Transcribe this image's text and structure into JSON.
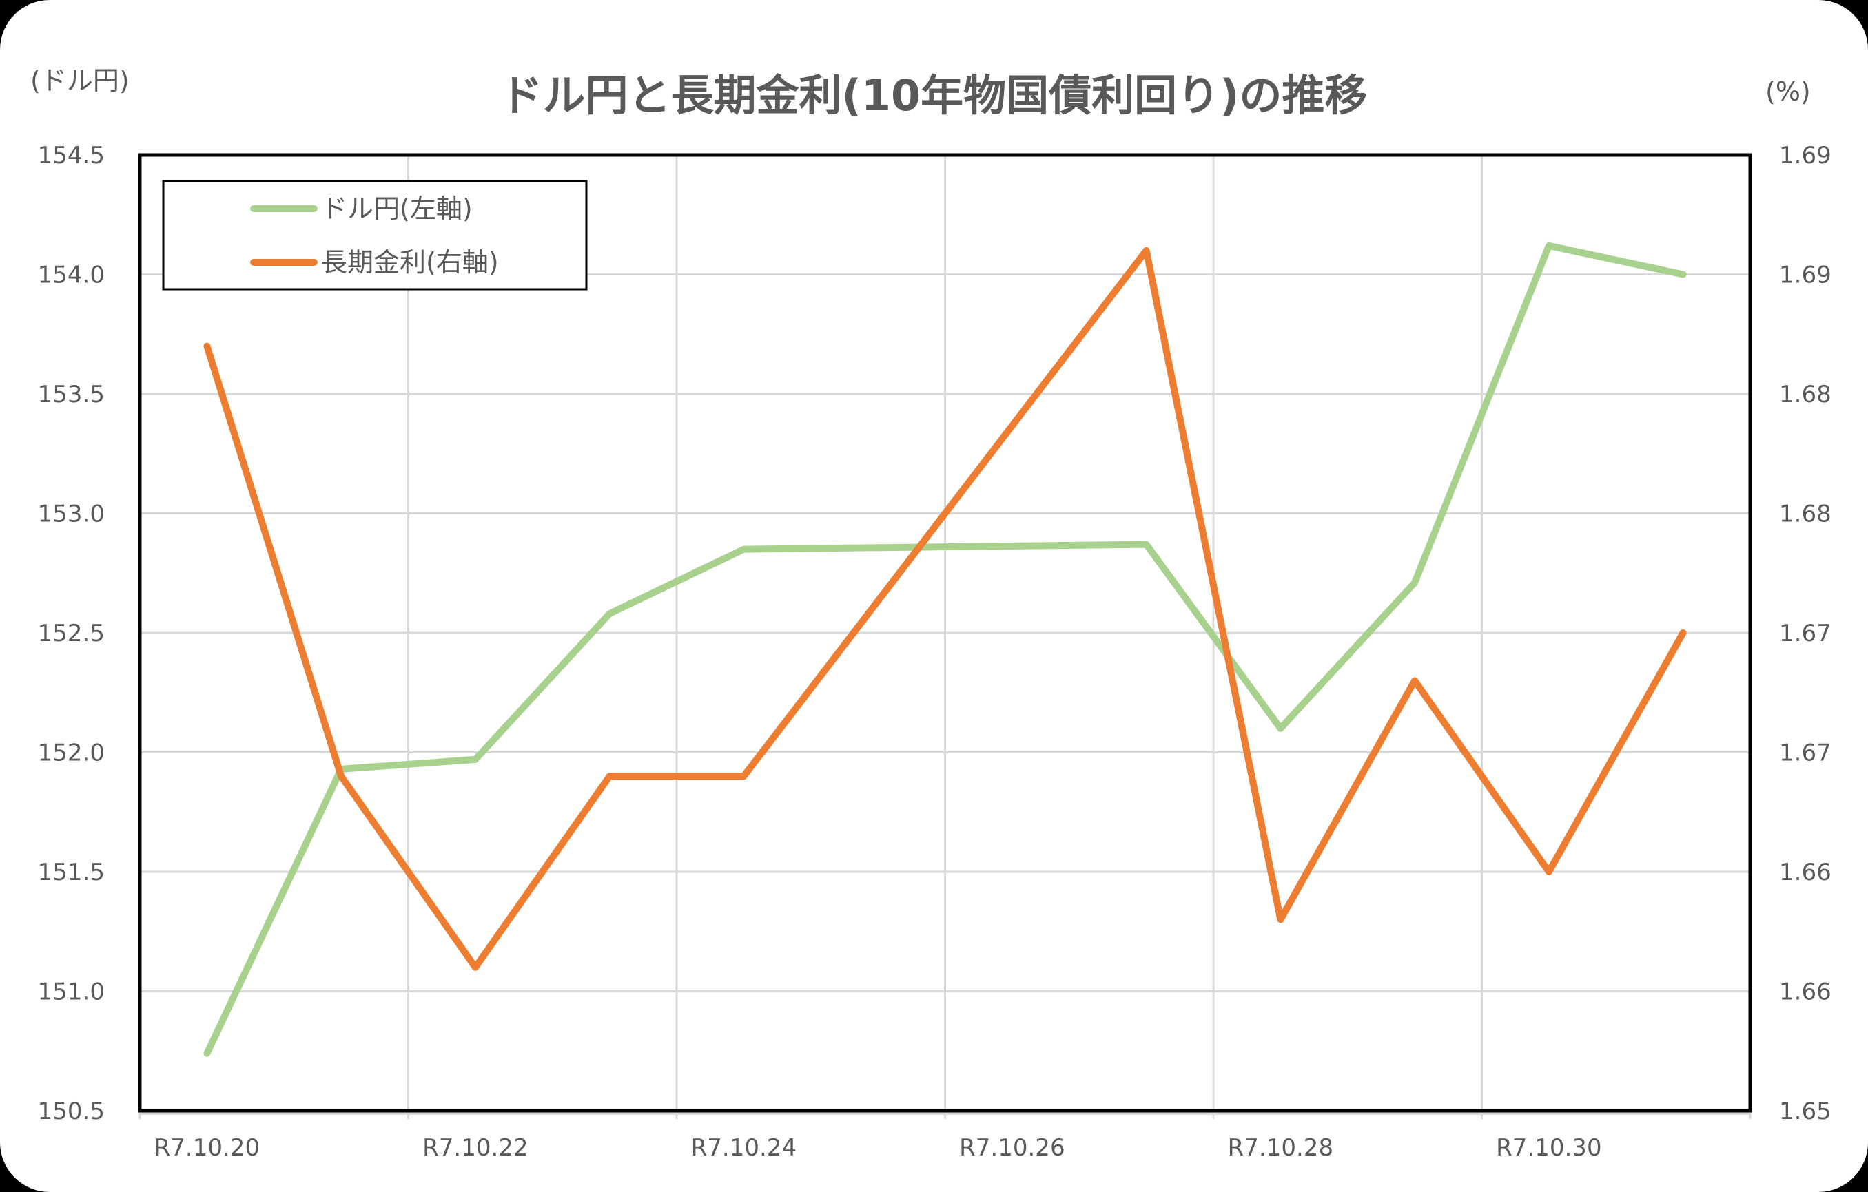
{
  "chart_data": {
    "type": "line",
    "title": "ドル円と長期金利(10年物国債利回り)の推移",
    "xlabel": "",
    "ylabel": "(ドル円)",
    "ylabel_right": "(%)",
    "x": [
      "R7.10.20",
      "R7.10.21",
      "R7.10.22",
      "R7.10.23",
      "R7.10.24",
      "R7.10.27",
      "R7.10.28",
      "R7.10.29",
      "R7.10.30",
      "R7.10.31"
    ],
    "x_day_index": [
      0,
      1,
      2,
      3,
      4,
      7,
      8,
      9,
      10,
      11
    ],
    "x_tick_labels": [
      "R7.10.20",
      "R7.10.22",
      "R7.10.24",
      "R7.10.26",
      "R7.10.28",
      "R7.10.30"
    ],
    "x_days_total": 12,
    "ylim": [
      150.5,
      154.5
    ],
    "ylim_right": [
      1.65,
      1.69
    ],
    "y_ticks": [
      "150.5",
      "151.0",
      "151.5",
      "152.0",
      "152.5",
      "153.0",
      "153.5",
      "154.0",
      "154.5"
    ],
    "y_ticks_right": [
      "1.65",
      "1.66",
      "1.66",
      "1.67",
      "1.67",
      "1.68",
      "1.68",
      "1.69",
      "1.69"
    ],
    "grid": true,
    "legend_position": "upper-left-inside",
    "series": [
      {
        "name": "ドル円(左軸)",
        "axis": "left",
        "color": "#A9D18E",
        "values": [
          150.74,
          151.93,
          151.97,
          152.58,
          152.85,
          152.87,
          152.1,
          152.71,
          154.12,
          154.0
        ]
      },
      {
        "name": "長期金利(右軸)",
        "axis": "right",
        "color": "#ED7D31",
        "values": [
          1.682,
          1.664,
          1.656,
          1.664,
          1.664,
          1.686,
          1.658,
          1.668,
          1.66,
          1.67
        ]
      }
    ]
  },
  "colors": {
    "text": "#595959",
    "grid": "#D9D9D9",
    "plot_border": "#000000"
  }
}
